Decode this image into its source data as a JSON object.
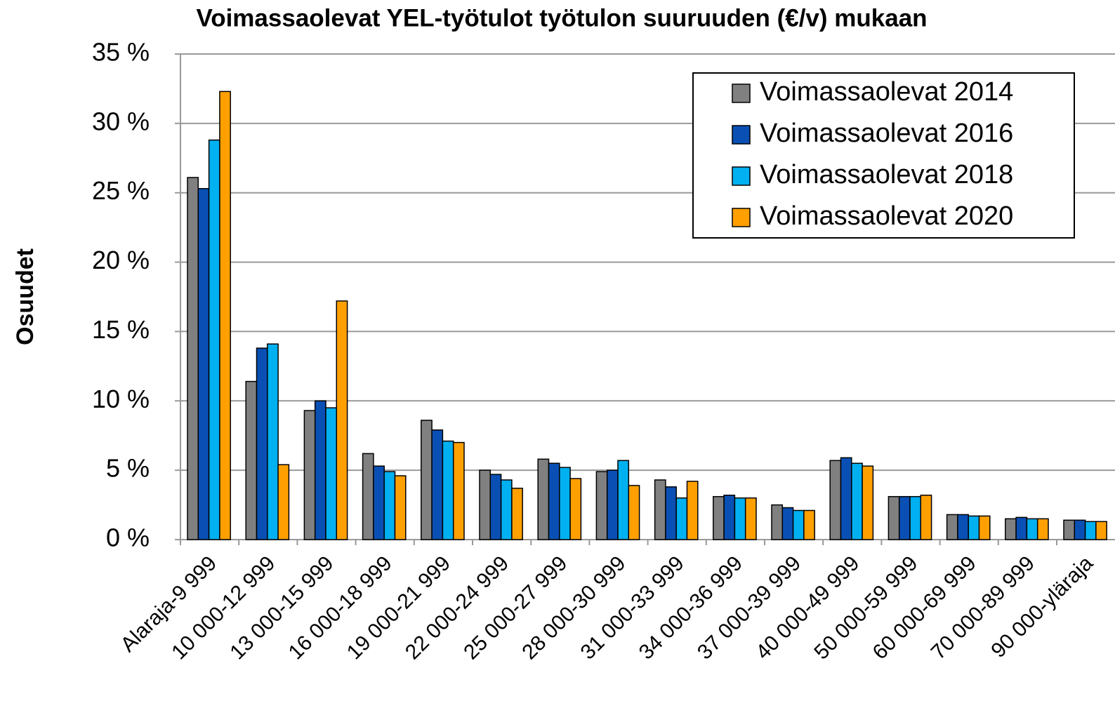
{
  "chart_data": {
    "type": "bar",
    "title": "Voimassaolevat YEL-työtulot työtulon suuruuden (€/v) mukaan",
    "y_label": "Osuudet",
    "categories": [
      "Alaraja-9 999",
      "10 000-12 999",
      "13 000-15 999",
      "16 000-18 999",
      "19 000-21 999",
      "22 000-24 999",
      "25 000-27 999",
      "28 000-30 999",
      "31 000-33 999",
      "34 000-36 999",
      "37 000-39 999",
      "40 000-49 999",
      "50 000-59 999",
      "60 000-69 999",
      "70 000-89 999",
      "90 000-yläraja"
    ],
    "series": [
      {
        "name": "Voimassaolevat 2014",
        "color": "#808080",
        "values": [
          26.1,
          11.4,
          9.3,
          6.2,
          8.6,
          5.0,
          5.8,
          4.9,
          4.3,
          3.1,
          2.5,
          5.7,
          3.1,
          1.8,
          1.5,
          1.4
        ]
      },
      {
        "name": "Voimassaolevat 2016",
        "color": "#0a50b4",
        "values": [
          25.3,
          13.8,
          10.0,
          5.3,
          7.9,
          4.7,
          5.5,
          5.0,
          3.8,
          3.2,
          2.3,
          5.9,
          3.1,
          1.8,
          1.6,
          1.4
        ]
      },
      {
        "name": "Voimassaolevat 2018",
        "color": "#00b0f0",
        "values": [
          28.8,
          14.1,
          9.5,
          4.9,
          7.1,
          4.3,
          5.2,
          5.7,
          3.0,
          3.0,
          2.1,
          5.5,
          3.1,
          1.7,
          1.5,
          1.3
        ]
      },
      {
        "name": "Voimassaolevat 2020",
        "color": "#ffa000",
        "values": [
          32.3,
          5.4,
          17.2,
          4.6,
          7.0,
          3.7,
          4.4,
          3.9,
          4.2,
          3.0,
          2.1,
          5.3,
          3.2,
          1.7,
          1.5,
          1.3
        ]
      }
    ],
    "ylim": [
      0,
      35
    ],
    "yticks": [
      {
        "value": 0,
        "label": "0 %"
      },
      {
        "value": 5,
        "label": "5 %"
      },
      {
        "value": 10,
        "label": "10 %"
      },
      {
        "value": 15,
        "label": "15 %"
      },
      {
        "value": 20,
        "label": "20 %"
      },
      {
        "value": 25,
        "label": "25 %"
      },
      {
        "value": 30,
        "label": "30 %"
      },
      {
        "value": 35,
        "label": "35 %"
      }
    ],
    "grid": true,
    "legend": "upper-right"
  }
}
